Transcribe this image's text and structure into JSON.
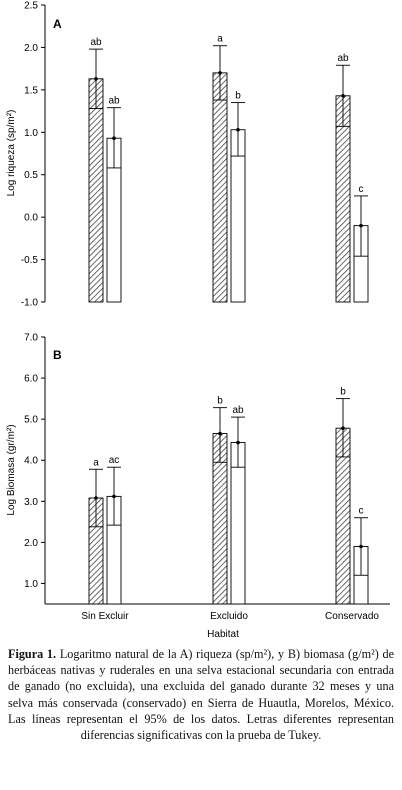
{
  "chart_data": [
    {
      "type": "bar",
      "panel": "A",
      "ylabel": "Log riqueza (sp/m²)",
      "xlabel": "",
      "ylim": [
        -1.0,
        2.5
      ],
      "yticks": [
        "-1.0",
        "-0.5",
        "0.0",
        "0.5",
        "1.0",
        "1.5",
        "2.0",
        "2.5"
      ],
      "categories": [
        "Sin Excluir",
        "Excluido",
        "Conservado"
      ],
      "series": [
        {
          "pattern": "hatched",
          "values": [
            1.63,
            1.7,
            1.43
          ],
          "ci_low": [
            1.28,
            1.38,
            1.07
          ],
          "ci_high": [
            1.98,
            2.02,
            1.79
          ],
          "letters": [
            "ab",
            "a",
            "ab"
          ]
        },
        {
          "pattern": "open",
          "values": [
            0.93,
            1.03,
            -0.1
          ],
          "ci_low": [
            0.58,
            0.72,
            -0.46
          ],
          "ci_high": [
            1.29,
            1.35,
            0.25
          ],
          "letters": [
            "ab",
            "b",
            "c"
          ]
        }
      ]
    },
    {
      "type": "bar",
      "panel": "B",
      "ylabel": "Log Biomasa (gr/m²)",
      "xlabel": "Habitat",
      "ylim": [
        0.5,
        7.0
      ],
      "yticks": [
        "1.0",
        "2.0",
        "3.0",
        "4.0",
        "5.0",
        "6.0",
        "7.0"
      ],
      "categories": [
        "Sin Excluir",
        "Excluido",
        "Conservado"
      ],
      "series": [
        {
          "pattern": "hatched",
          "values": [
            3.08,
            4.65,
            4.78
          ],
          "ci_low": [
            2.38,
            3.95,
            4.08
          ],
          "ci_high": [
            3.78,
            5.28,
            5.5
          ],
          "letters": [
            "a",
            "b",
            "b"
          ]
        },
        {
          "pattern": "open",
          "values": [
            3.12,
            4.43,
            1.9
          ],
          "ci_low": [
            2.42,
            3.83,
            1.2
          ],
          "ci_high": [
            3.83,
            5.05,
            2.6
          ],
          "letters": [
            "ac",
            "ab",
            "c"
          ]
        }
      ]
    }
  ],
  "caption": {
    "label": "Figura 1.",
    "text": "Logaritmo natural de la A) riqueza (sp/m²), y B) biomasa (g/m²) de herbáceas nativas y ruderales en una selva estacional secundaria con entrada de ganado (no excluida), una excluida del ganado durante 32 meses  y una selva más conservada (conservado) en Sierra de Huautla, Morelos, México. Las líneas representan el 95% de los datos. Letras diferentes representan diferencias significativas con la prueba de Tukey."
  }
}
